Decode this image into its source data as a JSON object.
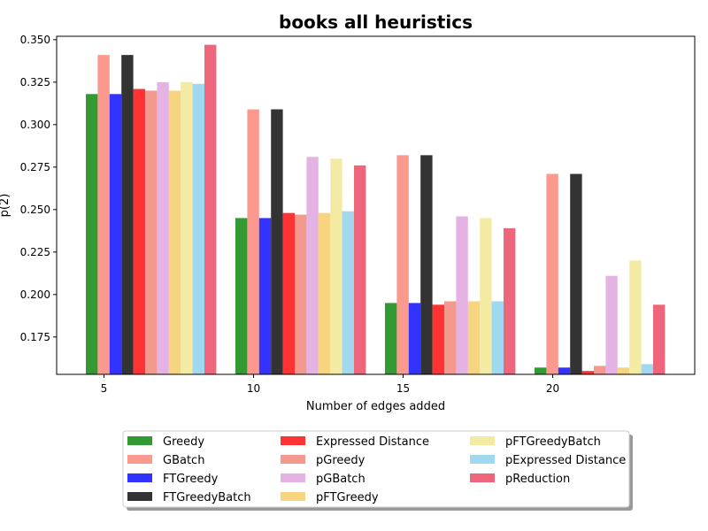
{
  "chart_data": {
    "type": "bar",
    "title": "books all heuristics",
    "xlabel": "Number of edges added",
    "ylabel": "p(2)",
    "categories": [
      "5",
      "10",
      "15",
      "20"
    ],
    "ylim": [
      0.153,
      0.352
    ],
    "yticks": [
      "0.175",
      "0.200",
      "0.225",
      "0.250",
      "0.275",
      "0.300",
      "0.325",
      "0.350"
    ],
    "legend_position": "bottom-center",
    "series": [
      {
        "name": "Greedy",
        "color": "#008000",
        "values": [
          0.318,
          0.245,
          0.195,
          0.157
        ]
      },
      {
        "name": "GBatch",
        "color": "#fa8072",
        "values": [
          0.341,
          0.309,
          0.282,
          0.271
        ]
      },
      {
        "name": "FTGreedy",
        "color": "#0000ff",
        "values": [
          0.318,
          0.245,
          0.195,
          0.157
        ]
      },
      {
        "name": "FTGreedyBatch",
        "color": "#000000",
        "values": [
          0.341,
          0.309,
          0.282,
          0.271
        ]
      },
      {
        "name": "Expressed Distance",
        "color": "#ff0000",
        "values": [
          0.321,
          0.248,
          0.194,
          0.155
        ]
      },
      {
        "name": "pGreedy",
        "color": "#f08070",
        "values": [
          0.32,
          0.247,
          0.196,
          0.158
        ]
      },
      {
        "name": "pGBatch",
        "color": "#dda0dd",
        "values": [
          0.325,
          0.281,
          0.246,
          0.211
        ]
      },
      {
        "name": "pFTGreedy",
        "color": "#f4c960",
        "values": [
          0.32,
          0.248,
          0.196,
          0.157
        ]
      },
      {
        "name": "pFTGreedyBatch",
        "color": "#f0e68c",
        "values": [
          0.325,
          0.28,
          0.245,
          0.22
        ]
      },
      {
        "name": "pExpressed Distance",
        "color": "#87ceeb",
        "values": [
          0.324,
          0.249,
          0.196,
          0.159
        ]
      },
      {
        "name": "pReduction",
        "color": "#e8405a",
        "values": [
          0.347,
          0.276,
          0.239,
          0.194
        ]
      }
    ],
    "bar_alpha": 0.8,
    "grid": false
  }
}
